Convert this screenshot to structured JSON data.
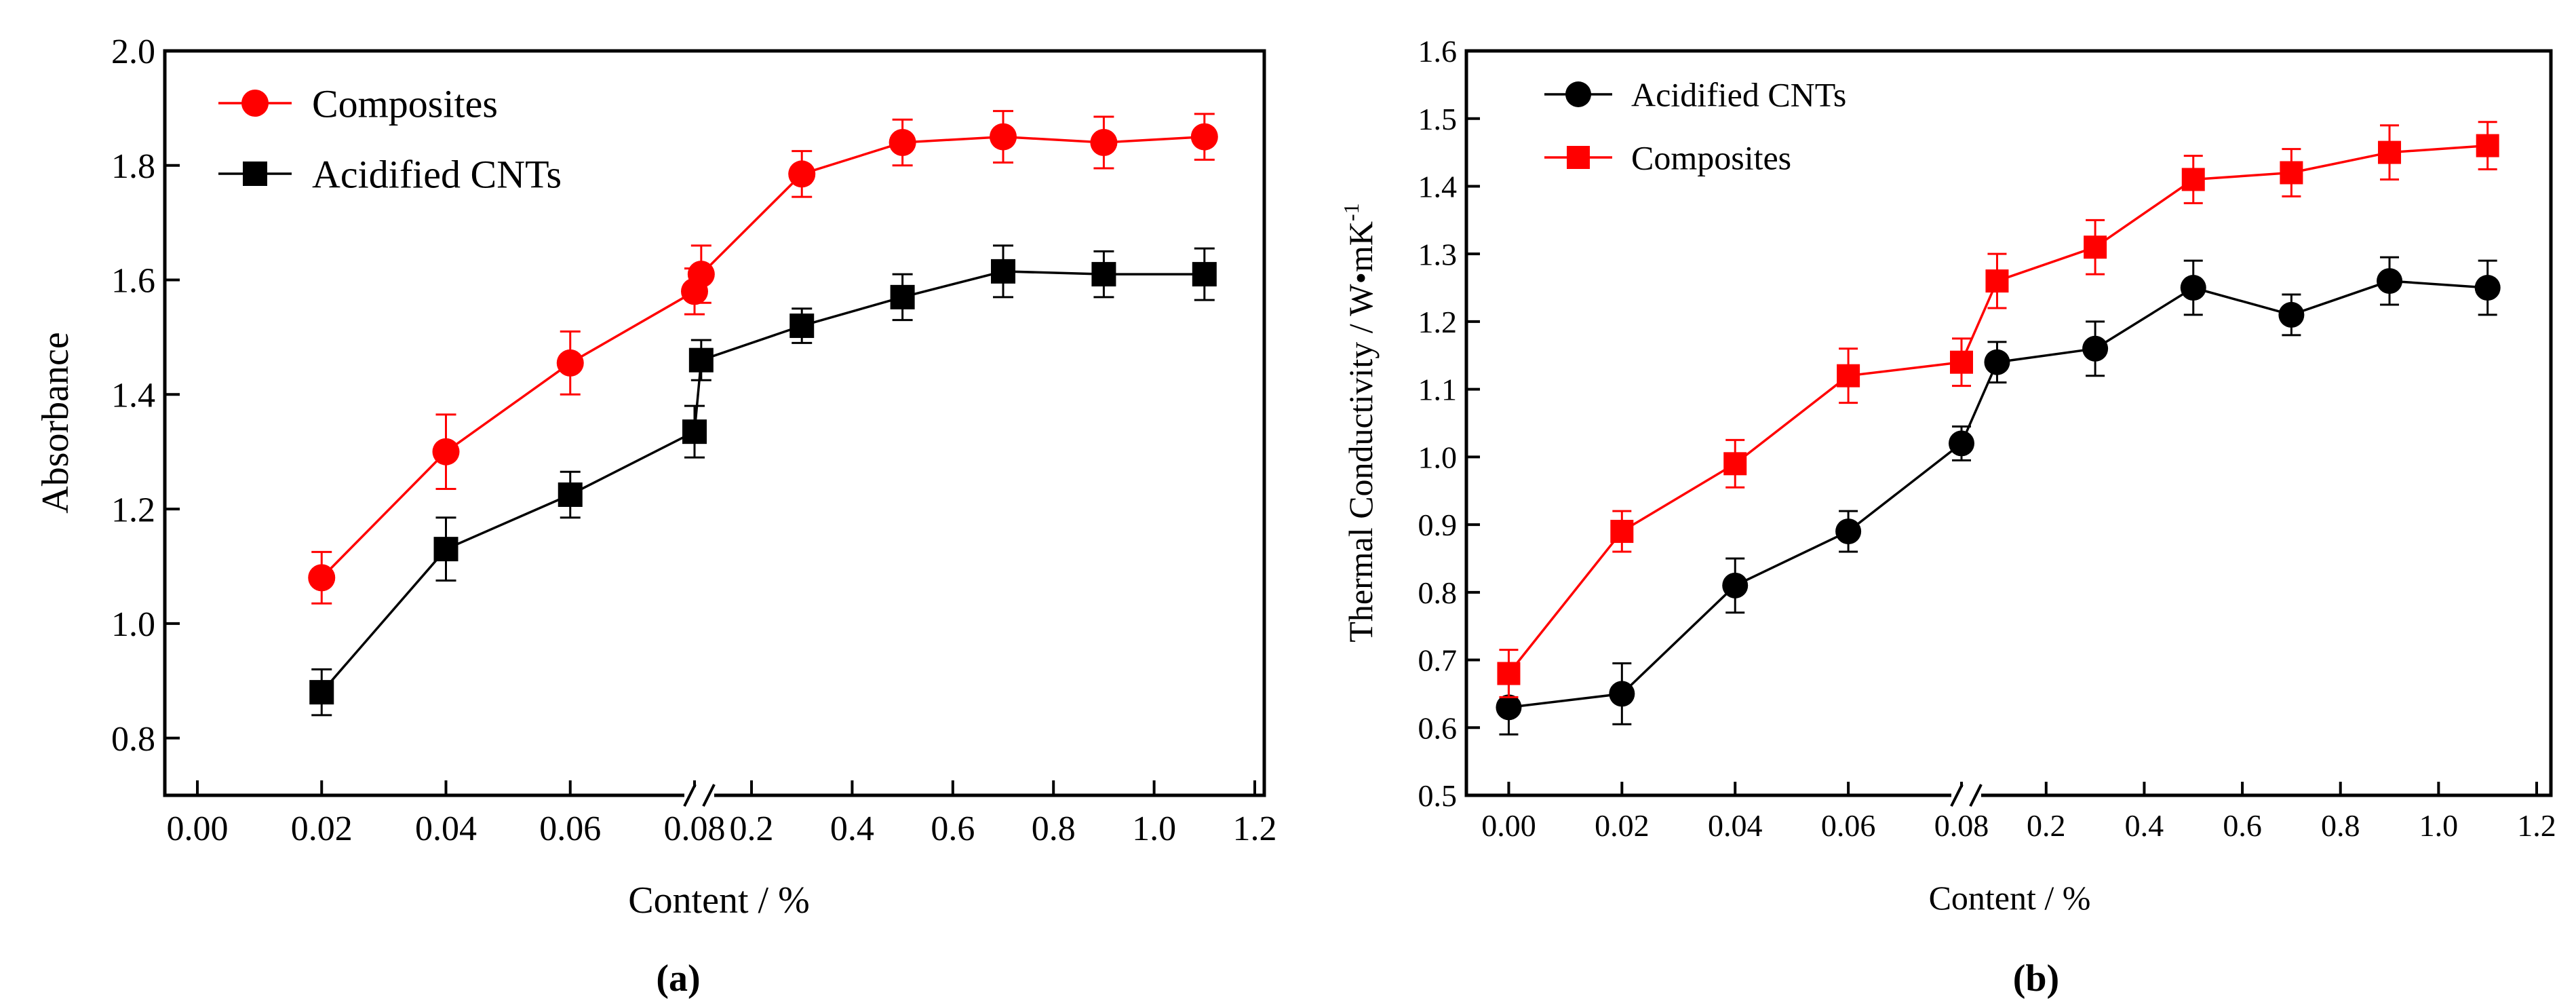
{
  "figure": {
    "colors": {
      "composites": "#ff0000",
      "cnts": "#000000",
      "axis": "#000000",
      "background": "#ffffff"
    }
  },
  "chart_data": [
    {
      "type": "line",
      "panel_label": "(a)",
      "title": "",
      "xlabel": "Content / %",
      "ylabel": "Absorbance",
      "broken_x_axis": true,
      "segments": [
        {
          "xlim": [
            0.0,
            0.08
          ],
          "xticks": [
            0.0,
            0.02,
            0.04,
            0.06,
            0.08
          ],
          "xtick_labels": [
            "0.00",
            "0.02",
            "0.04",
            "0.06",
            "0.08"
          ]
        },
        {
          "xlim": [
            0.08,
            1.2
          ],
          "xticks": [
            0.2,
            0.4,
            0.6,
            0.8,
            1.0,
            1.2
          ],
          "xtick_labels": [
            "0.2",
            "0.4",
            "0.6",
            "0.8",
            "1.0",
            "1.2"
          ]
        }
      ],
      "ylim": [
        0.7,
        2.0
      ],
      "yticks": [
        0.8,
        1.0,
        1.2,
        1.4,
        1.6,
        1.8,
        2.0
      ],
      "ytick_labels": [
        "0.8",
        "1.0",
        "1.2",
        "1.4",
        "1.6",
        "1.8",
        "2.0"
      ],
      "legend_position": "top-left",
      "series": [
        {
          "name": "Composites",
          "marker": "circle",
          "color": "#ff0000",
          "points": [
            {
              "seg": 0,
              "x": 0.02,
              "y": 1.08,
              "err": 0.045
            },
            {
              "seg": 0,
              "x": 0.04,
              "y": 1.3,
              "err": 0.065
            },
            {
              "seg": 0,
              "x": 0.06,
              "y": 1.455,
              "err": 0.055
            },
            {
              "seg": 0,
              "x": 0.08,
              "y": 1.58,
              "err": 0.04
            },
            {
              "seg": 1,
              "x": 0.1,
              "y": 1.61,
              "err": 0.05
            },
            {
              "seg": 1,
              "x": 0.3,
              "y": 1.785,
              "err": 0.04
            },
            {
              "seg": 1,
              "x": 0.5,
              "y": 1.84,
              "err": 0.04
            },
            {
              "seg": 1,
              "x": 0.7,
              "y": 1.85,
              "err": 0.045
            },
            {
              "seg": 1,
              "x": 0.9,
              "y": 1.84,
              "err": 0.045
            },
            {
              "seg": 1,
              "x": 1.1,
              "y": 1.85,
              "err": 0.04
            }
          ]
        },
        {
          "name": "Acidified CNTs",
          "marker": "square",
          "color": "#000000",
          "points": [
            {
              "seg": 0,
              "x": 0.02,
              "y": 0.88,
              "err": 0.04
            },
            {
              "seg": 0,
              "x": 0.04,
              "y": 1.13,
              "err": 0.055
            },
            {
              "seg": 0,
              "x": 0.06,
              "y": 1.225,
              "err": 0.04
            },
            {
              "seg": 0,
              "x": 0.08,
              "y": 1.335,
              "err": 0.045
            },
            {
              "seg": 1,
              "x": 0.1,
              "y": 1.46,
              "err": 0.035
            },
            {
              "seg": 1,
              "x": 0.3,
              "y": 1.52,
              "err": 0.03
            },
            {
              "seg": 1,
              "x": 0.5,
              "y": 1.57,
              "err": 0.04
            },
            {
              "seg": 1,
              "x": 0.7,
              "y": 1.615,
              "err": 0.045
            },
            {
              "seg": 1,
              "x": 0.9,
              "y": 1.61,
              "err": 0.04
            },
            {
              "seg": 1,
              "x": 1.1,
              "y": 1.61,
              "err": 0.045
            }
          ]
        }
      ]
    },
    {
      "type": "line",
      "panel_label": "(b)",
      "title": "",
      "xlabel": "Content / %",
      "ylabel": "Thermal Conductivity / W•mK",
      "ylabel_superscript": "-1",
      "broken_x_axis": true,
      "segments": [
        {
          "xlim": [
            -0.01,
            0.08
          ],
          "xticks": [
            0.0,
            0.02,
            0.04,
            0.06,
            0.08
          ],
          "xtick_labels": [
            "0.00",
            "0.02",
            "0.04",
            "0.06",
            "0.08"
          ]
        },
        {
          "xlim": [
            0.08,
            1.2
          ],
          "xticks": [
            0.2,
            0.4,
            0.6,
            0.8,
            1.0,
            1.2
          ],
          "xtick_labels": [
            "0.2",
            "0.4",
            "0.6",
            "0.8",
            "1.0",
            "1.2"
          ]
        }
      ],
      "ylim": [
        0.5,
        1.6
      ],
      "yticks": [
        0.5,
        0.6,
        0.7,
        0.8,
        0.9,
        1.0,
        1.1,
        1.2,
        1.3,
        1.4,
        1.5,
        1.6
      ],
      "ytick_labels": [
        "0.5",
        "0.6",
        "0.7",
        "0.8",
        "0.9",
        "1.0",
        "1.1",
        "1.2",
        "1.3",
        "1.4",
        "1.5",
        "1.6"
      ],
      "legend_position": "top-left",
      "series": [
        {
          "name": "Acidified CNTs",
          "marker": "circle",
          "color": "#000000",
          "points": [
            {
              "seg": 0,
              "x": 0.0,
              "y": 0.63,
              "err": 0.04
            },
            {
              "seg": 0,
              "x": 0.02,
              "y": 0.65,
              "err": 0.045
            },
            {
              "seg": 0,
              "x": 0.04,
              "y": 0.81,
              "err": 0.04
            },
            {
              "seg": 0,
              "x": 0.06,
              "y": 0.89,
              "err": 0.03
            },
            {
              "seg": 0,
              "x": 0.08,
              "y": 1.02,
              "err": 0.025
            },
            {
              "seg": 1,
              "x": 0.1,
              "y": 1.14,
              "err": 0.03
            },
            {
              "seg": 1,
              "x": 0.3,
              "y": 1.16,
              "err": 0.04
            },
            {
              "seg": 1,
              "x": 0.5,
              "y": 1.25,
              "err": 0.04
            },
            {
              "seg": 1,
              "x": 0.7,
              "y": 1.21,
              "err": 0.03
            },
            {
              "seg": 1,
              "x": 0.9,
              "y": 1.26,
              "err": 0.035
            },
            {
              "seg": 1,
              "x": 1.1,
              "y": 1.25,
              "err": 0.04
            }
          ]
        },
        {
          "name": "Composites",
          "marker": "square",
          "color": "#ff0000",
          "points": [
            {
              "seg": 0,
              "x": 0.0,
              "y": 0.68,
              "err": 0.035
            },
            {
              "seg": 0,
              "x": 0.02,
              "y": 0.89,
              "err": 0.03
            },
            {
              "seg": 0,
              "x": 0.04,
              "y": 0.99,
              "err": 0.035
            },
            {
              "seg": 0,
              "x": 0.06,
              "y": 1.12,
              "err": 0.04
            },
            {
              "seg": 0,
              "x": 0.08,
              "y": 1.14,
              "err": 0.035
            },
            {
              "seg": 1,
              "x": 0.1,
              "y": 1.26,
              "err": 0.04
            },
            {
              "seg": 1,
              "x": 0.3,
              "y": 1.31,
              "err": 0.04
            },
            {
              "seg": 1,
              "x": 0.5,
              "y": 1.41,
              "err": 0.035
            },
            {
              "seg": 1,
              "x": 0.7,
              "y": 1.42,
              "err": 0.035
            },
            {
              "seg": 1,
              "x": 0.9,
              "y": 1.45,
              "err": 0.04
            },
            {
              "seg": 1,
              "x": 1.1,
              "y": 1.46,
              "err": 0.035
            }
          ]
        }
      ]
    }
  ]
}
